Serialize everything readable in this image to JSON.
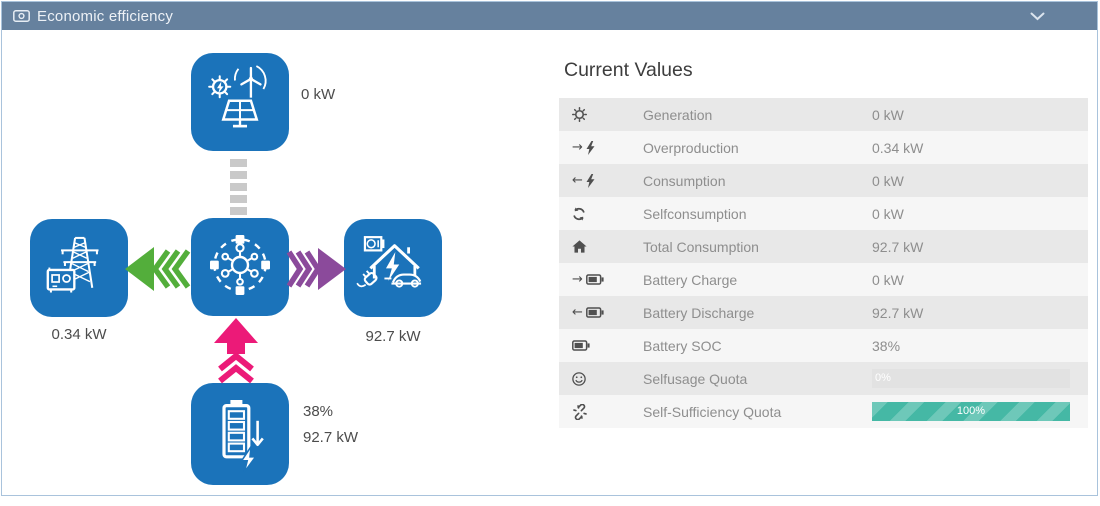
{
  "header": {
    "title": "Economic efficiency",
    "icon": "money-bill-icon",
    "collapse_icon": "chevron-down-icon"
  },
  "diagram": {
    "generation": {
      "icon": "solar-wind-turbine-icon",
      "label": "0 kW"
    },
    "hub": {
      "icon": "energy-hub-icon"
    },
    "grid": {
      "icon": "power-grid-icon",
      "label": "0.34 kW"
    },
    "consumption": {
      "icon": "home-ev-icon",
      "label": "92.7 kW"
    },
    "battery": {
      "icon": "battery-discharge-icon",
      "soc": "38%",
      "power": "92.7 kW"
    },
    "flows": {
      "generation_to_hub": "inactive-dashed",
      "hub_to_grid": "green-arrow-left",
      "hub_to_consumption": "purple-arrow-right",
      "battery_to_hub": "pink-arrow-up"
    }
  },
  "current_values": {
    "title": "Current Values",
    "rows": [
      {
        "icon": "sun-icon",
        "label": "Generation",
        "value": "0 kW"
      },
      {
        "icon": "arrow-right-bolt-icon",
        "label": "Overproduction",
        "value": "0.34 kW"
      },
      {
        "icon": "arrow-left-bolt-icon",
        "label": "Consumption",
        "value": "0 kW"
      },
      {
        "icon": "refresh-icon",
        "label": "Selfconsumption",
        "value": "0 kW"
      },
      {
        "icon": "home-icon",
        "label": "Total Consumption",
        "value": "92.7 kW"
      },
      {
        "icon": "arrow-right-battery-icon",
        "label": "Battery Charge",
        "value": "0 kW"
      },
      {
        "icon": "arrow-left-battery-icon",
        "label": "Battery Discharge",
        "value": "92.7 kW"
      },
      {
        "icon": "battery-icon",
        "label": "Battery SOC",
        "value": "38%"
      },
      {
        "icon": "smiley-icon",
        "label": "Selfusage Quota",
        "value": "0%",
        "bar": {
          "percent": 0
        }
      },
      {
        "icon": "unlink-icon",
        "label": "Self-Sufficiency Quota",
        "value": "100%",
        "bar": {
          "percent": 100
        }
      }
    ]
  },
  "colors": {
    "header_bg": "#66819e",
    "panel_border": "#a9c3dc",
    "tile_blue": "#1b73ba",
    "arrow_green": "#53ae3b",
    "arrow_purple": "#8b4a9b",
    "arrow_pink": "#ec1a78",
    "dash_gray": "#c9c9c9",
    "bar_teal": "#45b8a5",
    "row_gray": "#e8e8e8",
    "row_light": "#f6f6f6"
  }
}
